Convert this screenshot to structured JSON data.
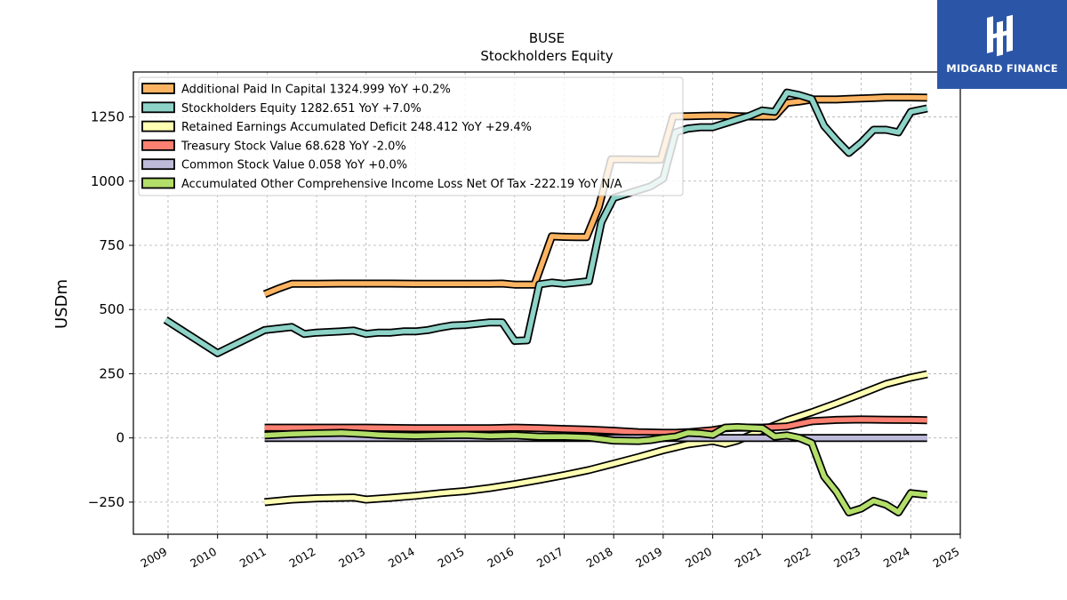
{
  "brand": {
    "name": "MIDGARD FINANCE",
    "logo_icon": "midgard-mark-icon",
    "color": "#2b56a8"
  },
  "chart_data": {
    "type": "line",
    "title": "BUSE",
    "subtitle": "Stockholders  Equity",
    "ylabel": "USDm",
    "xlabel": "",
    "xlim": [
      2008.3,
      2025.0
    ],
    "ylim": [
      -375,
      1425
    ],
    "yticks": [
      -250,
      0,
      250,
      500,
      750,
      1000,
      1250
    ],
    "ytick_labels": [
      "−250",
      "0",
      "250",
      "500",
      "750",
      "1000",
      "1250"
    ],
    "xticks": [
      2009,
      2010,
      2011,
      2012,
      2013,
      2014,
      2015,
      2016,
      2017,
      2018,
      2019,
      2020,
      2021,
      2022,
      2023,
      2024,
      2025
    ],
    "xtick_labels": [
      "2009",
      "2010",
      "2011",
      "2012",
      "2013",
      "2014",
      "2015",
      "2016",
      "2017",
      "2018",
      "2019",
      "2020",
      "2021",
      "2022",
      "2023",
      "2024",
      "2025"
    ],
    "grid": true,
    "legend_position": "top-left",
    "series": [
      {
        "name": "Additional Paid In Capital  1324.999 YoY +0.2%",
        "color": "#fdb462",
        "x": [
          2010.95,
          2011.25,
          2011.5,
          2011.75,
          2012.0,
          2012.5,
          2013.0,
          2013.5,
          2014.0,
          2014.5,
          2015.0,
          2015.5,
          2015.75,
          2016.0,
          2016.25,
          2016.4,
          2016.75,
          2017.0,
          2017.25,
          2017.45,
          2017.7,
          2017.95,
          2018.25,
          2018.5,
          2018.75,
          2018.95,
          2019.2,
          2019.5,
          2019.75,
          2020.0,
          2020.25,
          2020.5,
          2020.75,
          2021.0,
          2021.25,
          2021.5,
          2021.75,
          2022.0,
          2022.25,
          2022.5,
          2022.75,
          2023.0,
          2023.25,
          2023.5,
          2023.75,
          2024.0,
          2024.33
        ],
        "y": [
          560,
          583,
          600,
          600,
          600,
          601,
          601,
          601,
          600,
          600,
          600,
          600,
          601,
          597,
          597,
          597,
          785,
          783,
          782,
          782,
          900,
          1085,
          1085,
          1084,
          1083,
          1084,
          1252,
          1253,
          1254,
          1255,
          1255,
          1253,
          1252,
          1252,
          1252,
          1305,
          1310,
          1318,
          1318,
          1318,
          1320,
          1322,
          1324,
          1326,
          1326,
          1326,
          1325
        ]
      },
      {
        "name": "Stockholders Equity  1282.651 YoY +7.0%",
        "color": "#8dd3c7",
        "x": [
          2008.95,
          2010.0,
          2010.95,
          2011.5,
          2011.75,
          2012.0,
          2012.5,
          2012.75,
          2013.0,
          2013.25,
          2013.5,
          2013.75,
          2014.0,
          2014.25,
          2014.5,
          2014.75,
          2015.0,
          2015.25,
          2015.5,
          2015.75,
          2016.0,
          2016.25,
          2016.5,
          2016.75,
          2017.0,
          2017.25,
          2017.5,
          2017.75,
          2018.0,
          2018.25,
          2018.5,
          2018.75,
          2019.0,
          2019.25,
          2019.5,
          2019.75,
          2020.0,
          2020.25,
          2020.5,
          2020.75,
          2021.0,
          2021.25,
          2021.5,
          2021.75,
          2022.0,
          2022.25,
          2022.5,
          2022.75,
          2023.0,
          2023.25,
          2023.5,
          2023.75,
          2024.0,
          2024.33
        ],
        "y": [
          460,
          330,
          420,
          432,
          405,
          410,
          415,
          418,
          405,
          410,
          410,
          415,
          415,
          420,
          430,
          438,
          440,
          445,
          450,
          450,
          378,
          380,
          598,
          605,
          600,
          605,
          610,
          840,
          935,
          950,
          965,
          980,
          1010,
          1190,
          1205,
          1210,
          1210,
          1225,
          1240,
          1255,
          1275,
          1270,
          1345,
          1335,
          1320,
          1215,
          1160,
          1110,
          1150,
          1200,
          1200,
          1190,
          1270,
          1283
        ]
      },
      {
        "name": "Retained Earnings Accumulated Deficit  248.412 YoY +29.4%",
        "color": "#ffffb3",
        "x": [
          2010.95,
          2011.5,
          2012.0,
          2012.75,
          2013.0,
          2013.5,
          2014.0,
          2014.5,
          2015.0,
          2015.5,
          2016.0,
          2016.5,
          2017.0,
          2017.5,
          2018.0,
          2018.5,
          2019.0,
          2019.5,
          2020.0,
          2020.25,
          2020.5,
          2020.75,
          2021.0,
          2021.5,
          2022.0,
          2022.5,
          2023.0,
          2023.5,
          2024.0,
          2024.33
        ],
        "y": [
          -250,
          -240,
          -235,
          -232,
          -240,
          -233,
          -225,
          -215,
          -207,
          -195,
          -180,
          -163,
          -145,
          -125,
          -100,
          -75,
          -48,
          -25,
          -12,
          -23,
          -10,
          10,
          30,
          68,
          100,
          135,
          172,
          210,
          235,
          248
        ]
      },
      {
        "name": "Treasury Stock Value  68.628 YoY -2.0%",
        "color": "#fb8072",
        "x": [
          2010.95,
          2011.5,
          2012.0,
          2013.0,
          2014.0,
          2015.0,
          2015.5,
          2016.0,
          2016.5,
          2017.0,
          2017.5,
          2018.0,
          2018.5,
          2019.0,
          2019.25,
          2019.5,
          2020.0,
          2020.25,
          2020.5,
          2021.0,
          2021.5,
          2021.75,
          2022.0,
          2022.5,
          2023.0,
          2023.5,
          2024.0,
          2024.33
        ],
        "y": [
          40,
          40,
          40,
          40,
          38,
          38,
          38,
          40,
          38,
          35,
          32,
          28,
          22,
          20,
          20,
          22,
          30,
          38,
          40,
          40,
          45,
          55,
          65,
          70,
          72,
          71,
          70,
          69
        ]
      },
      {
        "name": "Common Stock Value  0.058 YoY +0.0%",
        "color": "#bebada",
        "x": [
          2010.95,
          2024.33
        ],
        "y": [
          0,
          0
        ]
      },
      {
        "name": "Accumulated Other Comprehensive Income Loss Net Of Tax  -222.19 YoY N/A",
        "color": "#b3de69",
        "x": [
          2010.95,
          2011.5,
          2012.0,
          2012.5,
          2013.0,
          2013.25,
          2013.5,
          2014.0,
          2014.5,
          2015.0,
          2015.5,
          2016.0,
          2016.5,
          2017.0,
          2017.5,
          2018.0,
          2018.5,
          2018.75,
          2019.0,
          2019.25,
          2019.5,
          2019.75,
          2020.0,
          2020.25,
          2020.5,
          2020.75,
          2021.0,
          2021.25,
          2021.5,
          2021.75,
          2022.0,
          2022.25,
          2022.5,
          2022.75,
          2023.0,
          2023.25,
          2023.5,
          2023.75,
          2024.0,
          2024.33
        ],
        "y": [
          10,
          15,
          18,
          20,
          15,
          12,
          10,
          8,
          10,
          12,
          8,
          10,
          5,
          5,
          2,
          -10,
          -12,
          -8,
          0,
          5,
          20,
          18,
          12,
          40,
          42,
          40,
          38,
          5,
          10,
          0,
          -20,
          -150,
          -210,
          -290,
          -275,
          -245,
          -260,
          -290,
          -215,
          -222
        ]
      }
    ]
  }
}
